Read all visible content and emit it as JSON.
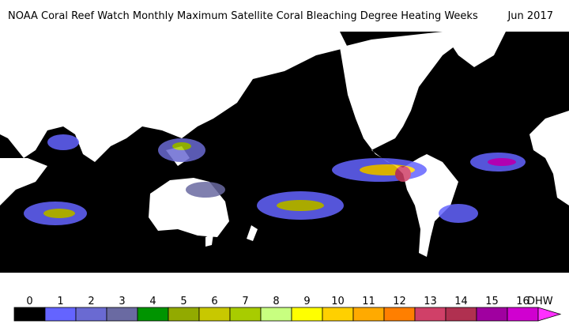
{
  "header": {
    "title": "NOAA Coral Reef Watch Monthly Maximum Satellite Coral Bleaching Degree Heating Weeks",
    "date": "Jun 2017"
  },
  "colorbar": {
    "unit": "DHW",
    "levels": [
      0,
      1,
      2,
      3,
      4,
      5,
      6,
      7,
      8,
      9,
      10,
      11,
      12,
      13,
      14,
      15,
      16
    ],
    "colors": [
      "#000000",
      "#6464ff",
      "#6a6ad2",
      "#6a6aa2",
      "#009400",
      "#92aa00",
      "#c8c800",
      "#a8cc00",
      "#c8ff80",
      "#ffff00",
      "#ffd000",
      "#ffaa00",
      "#ff7f00",
      "#d04068",
      "#b03050",
      "#a000a0",
      "#d000d0"
    ],
    "extend_color": "#ff30ff"
  }
}
